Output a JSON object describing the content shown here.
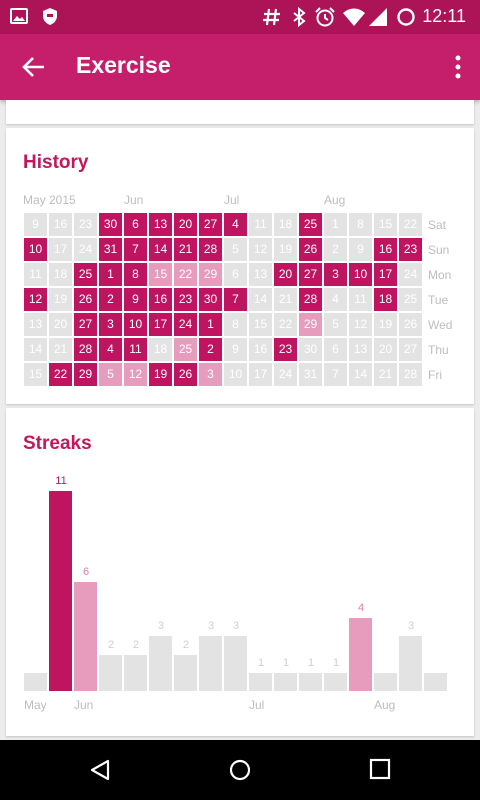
{
  "status_bar": {
    "time": "12:11",
    "icons": [
      "image-icon",
      "shield-icon",
      "hash-icon",
      "bluetooth-icon",
      "alarm-icon",
      "wifi-icon",
      "signal-icon",
      "sync-circle-icon"
    ]
  },
  "toolbar": {
    "title": "Exercise",
    "back_icon": "arrow-back-icon",
    "menu_icon": "more-vert-icon",
    "color": "#c51f6b"
  },
  "history": {
    "title": "History",
    "months": [
      "May 2015",
      "Jun",
      "Jul",
      "Aug"
    ],
    "weekdays": [
      "Sat",
      "Sun",
      "Mon",
      "Tue",
      "Wed",
      "Thu",
      "Fri"
    ],
    "weeks": [
      [
        [
          "9",
          "e"
        ],
        [
          "10",
          "f"
        ],
        [
          "11",
          "e"
        ],
        [
          "12",
          "f"
        ],
        [
          "13",
          "e"
        ],
        [
          "14",
          "e"
        ],
        [
          "15",
          "e"
        ]
      ],
      [
        [
          "16",
          "e"
        ],
        [
          "17",
          "e"
        ],
        [
          "18",
          "e"
        ],
        [
          "19",
          "e"
        ],
        [
          "20",
          "e"
        ],
        [
          "21",
          "e"
        ],
        [
          "22",
          "f"
        ]
      ],
      [
        [
          "23",
          "e"
        ],
        [
          "24",
          "e"
        ],
        [
          "25",
          "f"
        ],
        [
          "26",
          "f"
        ],
        [
          "27",
          "f"
        ],
        [
          "28",
          "f"
        ],
        [
          "29",
          "f"
        ]
      ],
      [
        [
          "30",
          "f"
        ],
        [
          "31",
          "f"
        ],
        [
          "1",
          "f"
        ],
        [
          "2",
          "f"
        ],
        [
          "3",
          "f"
        ],
        [
          "4",
          "f"
        ],
        [
          "5",
          "p"
        ]
      ],
      [
        [
          "6",
          "f"
        ],
        [
          "7",
          "f"
        ],
        [
          "8",
          "f"
        ],
        [
          "9",
          "f"
        ],
        [
          "10",
          "f"
        ],
        [
          "11",
          "f"
        ],
        [
          "12",
          "p"
        ]
      ],
      [
        [
          "13",
          "f"
        ],
        [
          "14",
          "f"
        ],
        [
          "15",
          "p"
        ],
        [
          "16",
          "f"
        ],
        [
          "17",
          "f"
        ],
        [
          "18",
          "e"
        ],
        [
          "19",
          "f"
        ]
      ],
      [
        [
          "20",
          "f"
        ],
        [
          "21",
          "f"
        ],
        [
          "22",
          "p"
        ],
        [
          "23",
          "f"
        ],
        [
          "24",
          "f"
        ],
        [
          "25",
          "p"
        ],
        [
          "26",
          "f"
        ]
      ],
      [
        [
          "27",
          "f"
        ],
        [
          "28",
          "f"
        ],
        [
          "29",
          "p"
        ],
        [
          "30",
          "f"
        ],
        [
          "1",
          "f"
        ],
        [
          "2",
          "f"
        ],
        [
          "3",
          "p"
        ]
      ],
      [
        [
          "4",
          "f"
        ],
        [
          "5",
          "e"
        ],
        [
          "6",
          "e"
        ],
        [
          "7",
          "f"
        ],
        [
          "8",
          "e"
        ],
        [
          "9",
          "e"
        ],
        [
          "10",
          "e"
        ]
      ],
      [
        [
          "11",
          "e"
        ],
        [
          "12",
          "e"
        ],
        [
          "13",
          "e"
        ],
        [
          "14",
          "e"
        ],
        [
          "15",
          "e"
        ],
        [
          "16",
          "e"
        ],
        [
          "17",
          "e"
        ]
      ],
      [
        [
          "18",
          "e"
        ],
        [
          "19",
          "e"
        ],
        [
          "20",
          "f"
        ],
        [
          "21",
          "e"
        ],
        [
          "22",
          "e"
        ],
        [
          "23",
          "f"
        ],
        [
          "24",
          "e"
        ]
      ],
      [
        [
          "25",
          "f"
        ],
        [
          "26",
          "f"
        ],
        [
          "27",
          "f"
        ],
        [
          "28",
          "f"
        ],
        [
          "29",
          "p"
        ],
        [
          "30",
          "e"
        ],
        [
          "31",
          "e"
        ]
      ],
      [
        [
          "1",
          "e"
        ],
        [
          "2",
          "e"
        ],
        [
          "3",
          "f"
        ],
        [
          "4",
          "e"
        ],
        [
          "5",
          "e"
        ],
        [
          "6",
          "e"
        ],
        [
          "7",
          "e"
        ]
      ],
      [
        [
          "8",
          "e"
        ],
        [
          "9",
          "e"
        ],
        [
          "10",
          "f"
        ],
        [
          "11",
          "e"
        ],
        [
          "12",
          "e"
        ],
        [
          "13",
          "e"
        ],
        [
          "14",
          "e"
        ]
      ],
      [
        [
          "15",
          "e"
        ],
        [
          "16",
          "f"
        ],
        [
          "17",
          "f"
        ],
        [
          "18",
          "f"
        ],
        [
          "19",
          "e"
        ],
        [
          "20",
          "e"
        ],
        [
          "21",
          "e"
        ]
      ],
      [
        [
          "22",
          "e"
        ],
        [
          "23",
          "f"
        ],
        [
          "24",
          "e"
        ],
        [
          "25",
          "e"
        ],
        [
          "26",
          "e"
        ],
        [
          "27",
          "e"
        ],
        [
          "28",
          "e"
        ]
      ]
    ],
    "legend": {
      "e": "#e3e3e3",
      "f": "#bf1561",
      "p": "#e79bbd"
    }
  },
  "streaks": {
    "title": "Streaks",
    "chart_data": {
      "type": "bar",
      "values": [
        1,
        11,
        6,
        2,
        2,
        3,
        2,
        3,
        3,
        1,
        1,
        1,
        1,
        4,
        1,
        3,
        1
      ],
      "labels": [
        "",
        "11",
        "6",
        "2",
        "2",
        "3",
        "2",
        "3",
        "3",
        "1",
        "1",
        "1",
        "1",
        "4",
        "",
        "3",
        ""
      ],
      "levels": [
        "e",
        "f",
        "p",
        "e",
        "e",
        "e",
        "e",
        "e",
        "e",
        "e",
        "e",
        "e",
        "e",
        "p",
        "e",
        "e",
        "e"
      ],
      "x_tick_labels": [
        "May",
        "Jun",
        "Jul",
        "Aug"
      ],
      "ylim": [
        0,
        11
      ],
      "colors": {
        "e": "#e3e3e3",
        "f": "#bf1561",
        "p": "#e79bbd"
      }
    }
  },
  "nav_bar": {
    "buttons": [
      "back-triangle-icon",
      "home-circle-icon",
      "recents-square-icon"
    ]
  }
}
